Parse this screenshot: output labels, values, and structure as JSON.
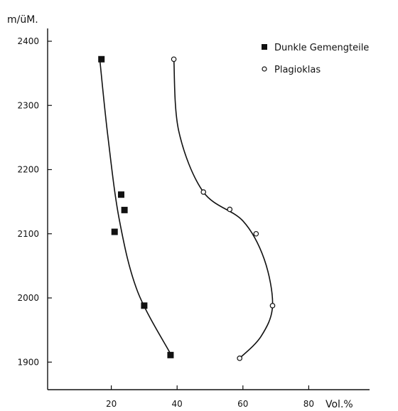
{
  "chart_data": {
    "type": "scatter",
    "ylabel": "m/üM.",
    "xlabel": "Vol.%",
    "xlim": [
      0,
      90
    ],
    "ylim": [
      1860,
      2440
    ],
    "x_ticks": [
      20,
      40,
      60,
      80
    ],
    "y_ticks": [
      1900,
      2000,
      2100,
      2200,
      2300,
      2400
    ],
    "grid": false,
    "legend_position": "top-right",
    "series": [
      {
        "name": "Dunkle Gemengteile",
        "marker": "filled-square",
        "color": "#111111",
        "points": [
          {
            "x": 17,
            "y": 2372
          },
          {
            "x": 23,
            "y": 2161
          },
          {
            "x": 24,
            "y": 2137
          },
          {
            "x": 21,
            "y": 2103
          },
          {
            "x": 30,
            "y": 1988
          },
          {
            "x": 38,
            "y": 1911
          }
        ],
        "curve": [
          [
            16.5,
            2372
          ],
          [
            19,
            2250
          ],
          [
            22.5,
            2120
          ],
          [
            28,
            2010
          ],
          [
            38,
            1913
          ]
        ]
      },
      {
        "name": "Plagioklas",
        "marker": "open-circle",
        "color": "#111111",
        "points": [
          {
            "x": 39,
            "y": 2372
          },
          {
            "x": 48,
            "y": 2165
          },
          {
            "x": 56,
            "y": 2138
          },
          {
            "x": 64,
            "y": 2100
          },
          {
            "x": 69,
            "y": 1988
          },
          {
            "x": 59,
            "y": 1906
          }
        ],
        "curve": [
          [
            39,
            2372
          ],
          [
            40.5,
            2260
          ],
          [
            48,
            2165
          ],
          [
            60,
            2120
          ],
          [
            66.5,
            2060
          ],
          [
            69,
            1988
          ],
          [
            65.5,
            1940
          ],
          [
            59,
            1906
          ]
        ]
      }
    ]
  }
}
